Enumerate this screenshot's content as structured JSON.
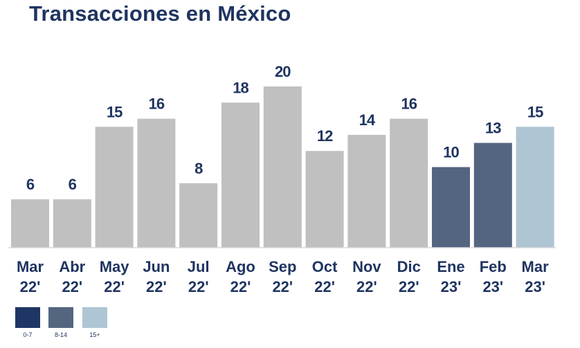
{
  "chart_data": {
    "type": "bar",
    "title": "Transacciones en México",
    "xlabel": "",
    "ylabel": "",
    "ylim": [
      0,
      20
    ],
    "grid": false,
    "legend_position": "bottom-left",
    "categories": [
      [
        "Mar",
        "22'"
      ],
      [
        "Abr",
        "22'"
      ],
      [
        "May",
        "22'"
      ],
      [
        "Jun",
        "22'"
      ],
      [
        "Jul",
        "22'"
      ],
      [
        "Ago",
        "22'"
      ],
      [
        "Sep",
        "22'"
      ],
      [
        "Oct",
        "22'"
      ],
      [
        "Nov",
        "22'"
      ],
      [
        "Dic",
        "22'"
      ],
      [
        "Ene",
        "23'"
      ],
      [
        "Feb",
        "23'"
      ],
      [
        "Mar",
        "23'"
      ]
    ],
    "values": [
      6,
      6,
      15,
      16,
      8,
      18,
      20,
      12,
      14,
      16,
      10,
      13,
      15
    ],
    "bar_colors": [
      "#c0c0c0",
      "#c0c0c0",
      "#c0c0c0",
      "#c0c0c0",
      "#c0c0c0",
      "#c0c0c0",
      "#c0c0c0",
      "#c0c0c0",
      "#c0c0c0",
      "#c0c0c0",
      "#546580",
      "#546580",
      "#aec5d3"
    ],
    "label_color": "#1f3460",
    "legend": [
      {
        "label": "0-7",
        "color": "#1f3564"
      },
      {
        "label": "8-14",
        "color": "#546580"
      },
      {
        "label": "15+",
        "color": "#aec5d3"
      }
    ]
  }
}
